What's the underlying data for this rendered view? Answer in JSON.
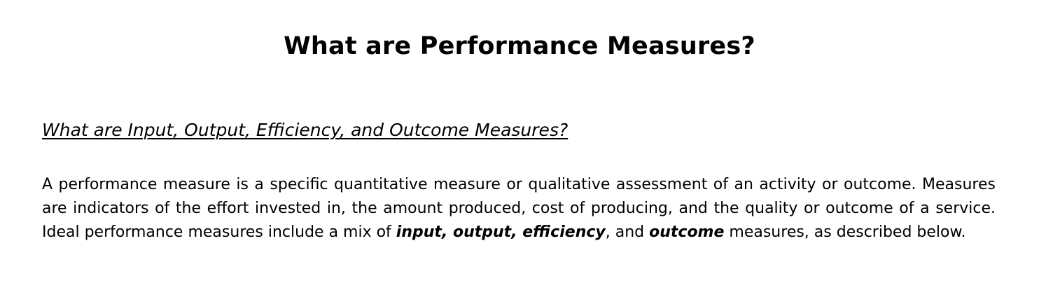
{
  "document": {
    "title": "What are Performance Measures?",
    "section_heading": "What are Input, Output, Efficiency, and Outcome Measures?",
    "paragraph": {
      "part1": "A performance measure is a specific quantitative measure or qualitative assessment of an activity or outcome. Measures are indicators of the effort invested in, the amount produced, cost of producing, and the quality or outcome of a service. Ideal performance measures include a mix of ",
      "term_input": "input",
      "sep1": ", ",
      "term_output": "output",
      "sep2": ", ",
      "term_efficiency": "efficiency",
      "sep3": ", and ",
      "term_outcome": "outcome",
      "part2": " measures, as described below."
    }
  }
}
